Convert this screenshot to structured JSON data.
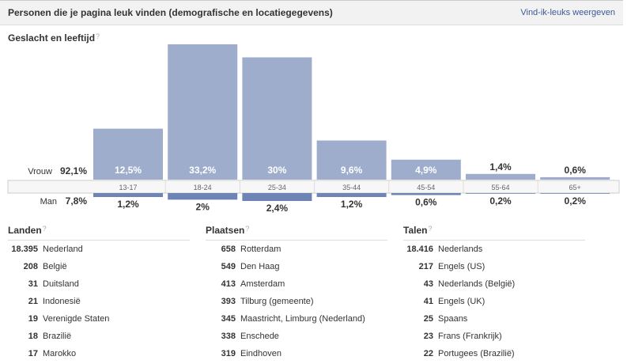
{
  "header": {
    "title": "Personen die je pagina leuk vinden (demografische en locatiegegevens)",
    "link": "Vind-ik-leuks weergeven"
  },
  "section": {
    "title": "Geslacht en leeftijd",
    "help": "?"
  },
  "chart_data": {
    "type": "bar",
    "title": "Geslacht en leeftijd",
    "categories": [
      "13-17",
      "18-24",
      "25-34",
      "35-44",
      "45-54",
      "55-64",
      "65+"
    ],
    "series": [
      {
        "name": "Vrouw",
        "total": "92,1%",
        "values": [
          12.5,
          33.2,
          30.0,
          9.6,
          4.9,
          1.4,
          0.6
        ],
        "labels": [
          "12,5%",
          "33,2%",
          "30%",
          "9,6%",
          "4,9%",
          "1,4%",
          "0,6%"
        ]
      },
      {
        "name": "Man",
        "total": "7,8%",
        "values": [
          1.2,
          2.0,
          2.4,
          1.2,
          0.6,
          0.2,
          0.2
        ],
        "labels": [
          "1,2%",
          "2%",
          "2,4%",
          "1,2%",
          "0,6%",
          "0,2%",
          "0,2%"
        ]
      }
    ]
  },
  "lists": [
    {
      "title": "Landen",
      "help": "?",
      "items": [
        {
          "count": "18.395",
          "label": "Nederland"
        },
        {
          "count": "208",
          "label": "België"
        },
        {
          "count": "31",
          "label": "Duitsland"
        },
        {
          "count": "21",
          "label": "Indonesië"
        },
        {
          "count": "19",
          "label": "Verenigde Staten"
        },
        {
          "count": "18",
          "label": "Brazilië"
        },
        {
          "count": "17",
          "label": "Marokko"
        }
      ]
    },
    {
      "title": "Plaatsen",
      "help": "?",
      "items": [
        {
          "count": "658",
          "label": "Rotterdam"
        },
        {
          "count": "549",
          "label": "Den Haag"
        },
        {
          "count": "413",
          "label": "Amsterdam"
        },
        {
          "count": "393",
          "label": "Tilburg (gemeente)"
        },
        {
          "count": "345",
          "label": "Maastricht, Limburg (Nederland)"
        },
        {
          "count": "338",
          "label": "Enschede"
        },
        {
          "count": "319",
          "label": "Eindhoven"
        }
      ]
    },
    {
      "title": "Talen",
      "help": "?",
      "items": [
        {
          "count": "18.416",
          "label": "Nederlands"
        },
        {
          "count": "217",
          "label": "Engels (US)"
        },
        {
          "count": "43",
          "label": "Nederlands (België)"
        },
        {
          "count": "41",
          "label": "Engels (UK)"
        },
        {
          "count": "25",
          "label": "Spaans"
        },
        {
          "count": "23",
          "label": "Frans (Frankrijk)"
        },
        {
          "count": "22",
          "label": "Portugees (Brazilië)"
        }
      ]
    }
  ],
  "colors": {
    "female_bar": "#9eadcc",
    "male_bar": "#6d84b4",
    "link": "#3b5998",
    "label_on_bar": "#ffffff",
    "band": "#f7f7f7"
  }
}
